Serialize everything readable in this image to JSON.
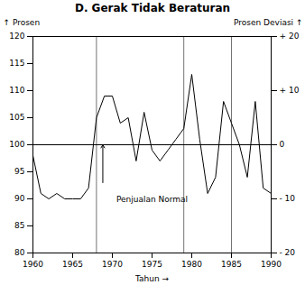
{
  "chart_data": {
    "type": "line",
    "title": "D. Gerak Tidak Beraturan",
    "x_label": "Tahun",
    "y_label": "Prosen",
    "y2_label": "Prosen Deviasi",
    "x": [
      1960,
      1961,
      1962,
      1963,
      1964,
      1965,
      1966,
      1967,
      1968,
      1969,
      1970,
      1971,
      1972,
      1973,
      1974,
      1975,
      1976,
      1977,
      1978,
      1979,
      1980,
      1981,
      1982,
      1983,
      1984,
      1985,
      1986,
      1987,
      1988,
      1989,
      1990
    ],
    "values": [
      98,
      91,
      90,
      91,
      90,
      90,
      90,
      92,
      105,
      109,
      109,
      104,
      105,
      97,
      106,
      99,
      97,
      99,
      101,
      103,
      113,
      101,
      91,
      94,
      108,
      104,
      100,
      94,
      108,
      92,
      91
    ],
    "xlim": [
      1960,
      1990
    ],
    "xticks": [
      1960,
      1965,
      1970,
      1975,
      1980,
      1985,
      1990
    ],
    "ylim": [
      80,
      120
    ],
    "yticks": [
      80,
      85,
      90,
      95,
      100,
      105,
      110,
      115,
      120
    ],
    "y2lim": [
      -20,
      20
    ],
    "y2ticks": [
      {
        "value": -20,
        "label": "- 20"
      },
      {
        "value": -10,
        "label": "- 10"
      },
      0,
      {
        "value": 10,
        "label": "+ 10"
      },
      {
        "value": 20,
        "label": "+ 20"
      }
    ],
    "hline": 100,
    "vlines": [
      1968,
      1979,
      1985
    ],
    "annotations": [
      {
        "text": "Penjualan Normal",
        "x": 1970.5,
        "y": 90.5
      }
    ],
    "arrows": [
      {
        "x": 1968.8,
        "y_start": 93,
        "y_end": 100
      }
    ],
    "grid": false
  }
}
